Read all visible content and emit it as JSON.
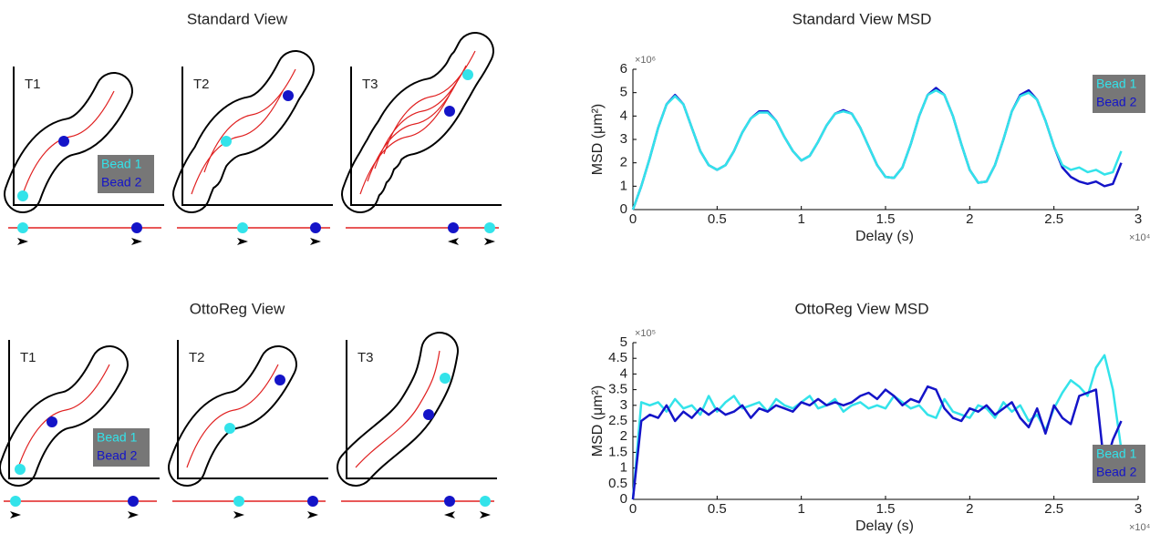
{
  "views": [
    {
      "title": "Standard View",
      "frames": [
        "T1",
        "T2",
        "T3"
      ],
      "legend": [
        "Bead 1",
        "Bead 2"
      ]
    },
    {
      "title": "OttoReg View",
      "frames": [
        "T1",
        "T2",
        "T3"
      ],
      "legend": [
        "Bead 1",
        "Bead 2"
      ]
    }
  ],
  "chart_data": [
    {
      "type": "line",
      "title": "Standard View MSD",
      "x_label": "Delay (s)",
      "y_label": "MSD (μm²)",
      "x_multiplier": "×10⁴",
      "y_multiplier": "×10⁶",
      "legend": "upper right",
      "xlim": [
        0,
        3
      ],
      "xticks": [
        0,
        0.5,
        1,
        1.5,
        2,
        2.5,
        3
      ],
      "ylim": [
        0,
        6
      ],
      "yticks": [
        0,
        1,
        2,
        3,
        4,
        5,
        6
      ],
      "x": [
        0,
        0.05,
        0.1,
        0.15,
        0.2,
        0.25,
        0.3,
        0.35,
        0.4,
        0.45,
        0.5,
        0.55,
        0.6,
        0.65,
        0.7,
        0.75,
        0.8,
        0.85,
        0.9,
        0.95,
        1,
        1.05,
        1.1,
        1.15,
        1.2,
        1.25,
        1.3,
        1.35,
        1.4,
        1.45,
        1.5,
        1.55,
        1.6,
        1.65,
        1.7,
        1.75,
        1.8,
        1.85,
        1.9,
        1.95,
        2,
        2.05,
        2.1,
        2.15,
        2.2,
        2.25,
        2.3,
        2.35,
        2.4,
        2.45,
        2.5,
        2.55,
        2.6,
        2.65,
        2.7,
        2.75,
        2.8,
        2.85,
        2.9
      ],
      "series": [
        {
          "name": "Bead 2",
          "color": "#1414c8",
          "values": [
            0,
            1.0,
            2.2,
            3.5,
            4.5,
            4.9,
            4.5,
            3.5,
            2.5,
            1.9,
            1.7,
            1.9,
            2.5,
            3.3,
            3.9,
            4.2,
            4.2,
            3.8,
            3.1,
            2.5,
            2.1,
            2.3,
            2.9,
            3.6,
            4.1,
            4.25,
            4.1,
            3.5,
            2.7,
            1.9,
            1.4,
            1.35,
            1.8,
            2.8,
            4.0,
            4.9,
            5.2,
            4.9,
            4.0,
            2.8,
            1.7,
            1.15,
            1.2,
            1.9,
            3.0,
            4.2,
            4.9,
            5.1,
            4.7,
            3.8,
            2.7,
            1.8,
            1.4,
            1.2,
            1.1,
            1.2,
            1.0,
            1.1,
            2.0
          ]
        },
        {
          "name": "Bead 1",
          "color": "#33e3ea",
          "values": [
            0,
            1.0,
            2.2,
            3.5,
            4.5,
            4.85,
            4.5,
            3.5,
            2.5,
            1.9,
            1.7,
            1.9,
            2.5,
            3.3,
            3.9,
            4.15,
            4.15,
            3.8,
            3.1,
            2.5,
            2.1,
            2.3,
            2.9,
            3.6,
            4.1,
            4.2,
            4.1,
            3.5,
            2.7,
            1.9,
            1.4,
            1.35,
            1.8,
            2.8,
            4.0,
            4.9,
            5.1,
            4.9,
            4.0,
            2.8,
            1.7,
            1.15,
            1.2,
            1.9,
            3.0,
            4.2,
            4.85,
            5.0,
            4.7,
            3.8,
            2.7,
            1.9,
            1.7,
            1.8,
            1.6,
            1.7,
            1.5,
            1.6,
            2.5
          ]
        }
      ]
    },
    {
      "type": "line",
      "title": "OttoReg View MSD",
      "x_label": "Delay (s)",
      "y_label": "MSD (μm²)",
      "x_multiplier": "×10⁴",
      "y_multiplier": "×10⁵",
      "legend": "lower right",
      "xlim": [
        0,
        3
      ],
      "xticks": [
        0,
        0.5,
        1,
        1.5,
        2,
        2.5,
        3
      ],
      "ylim": [
        0,
        5
      ],
      "yticks": [
        0,
        0.5,
        1,
        1.5,
        2,
        2.5,
        3,
        3.5,
        4,
        4.5,
        5
      ],
      "x": [
        0,
        0.05,
        0.1,
        0.15,
        0.2,
        0.25,
        0.3,
        0.35,
        0.4,
        0.45,
        0.5,
        0.55,
        0.6,
        0.65,
        0.7,
        0.75,
        0.8,
        0.85,
        0.9,
        0.95,
        1,
        1.05,
        1.1,
        1.15,
        1.2,
        1.25,
        1.3,
        1.35,
        1.4,
        1.45,
        1.5,
        1.55,
        1.6,
        1.65,
        1.7,
        1.75,
        1.8,
        1.85,
        1.9,
        1.95,
        2,
        2.05,
        2.1,
        2.15,
        2.2,
        2.25,
        2.3,
        2.35,
        2.4,
        2.45,
        2.5,
        2.55,
        2.6,
        2.65,
        2.7,
        2.75,
        2.8,
        2.85,
        2.9
      ],
      "series": [
        {
          "name": "Bead 1",
          "color": "#33e3ea",
          "values": [
            0,
            3.1,
            3.0,
            3.1,
            2.8,
            3.2,
            2.9,
            3.0,
            2.7,
            3.3,
            2.8,
            3.1,
            3.3,
            2.9,
            3.0,
            3.1,
            2.8,
            3.2,
            3.0,
            2.9,
            3.1,
            3.3,
            2.9,
            3.0,
            3.2,
            2.8,
            3.0,
            3.1,
            2.9,
            3.0,
            2.9,
            3.3,
            3.1,
            2.9,
            3.0,
            2.7,
            2.6,
            3.2,
            2.8,
            2.7,
            2.6,
            3.0,
            2.9,
            2.6,
            3.1,
            2.8,
            3.0,
            2.5,
            2.7,
            2.2,
            2.9,
            3.4,
            3.8,
            3.6,
            3.3,
            4.2,
            4.6,
            3.5,
            1.6
          ]
        },
        {
          "name": "Bead 2",
          "color": "#1414c8",
          "values": [
            0,
            2.5,
            2.7,
            2.6,
            3.0,
            2.5,
            2.8,
            2.6,
            2.9,
            2.7,
            2.9,
            2.7,
            2.8,
            3.0,
            2.6,
            2.9,
            2.8,
            3.0,
            2.9,
            2.8,
            3.1,
            3.0,
            3.2,
            3.0,
            3.1,
            3.0,
            3.1,
            3.3,
            3.4,
            3.2,
            3.5,
            3.3,
            3.0,
            3.2,
            3.1,
            3.6,
            3.5,
            2.9,
            2.6,
            2.5,
            2.9,
            2.8,
            3.0,
            2.7,
            2.9,
            3.1,
            2.6,
            2.3,
            2.9,
            2.1,
            3.0,
            2.6,
            2.4,
            3.3,
            3.4,
            3.5,
            1.0,
            1.9,
            2.5
          ]
        }
      ]
    }
  ]
}
